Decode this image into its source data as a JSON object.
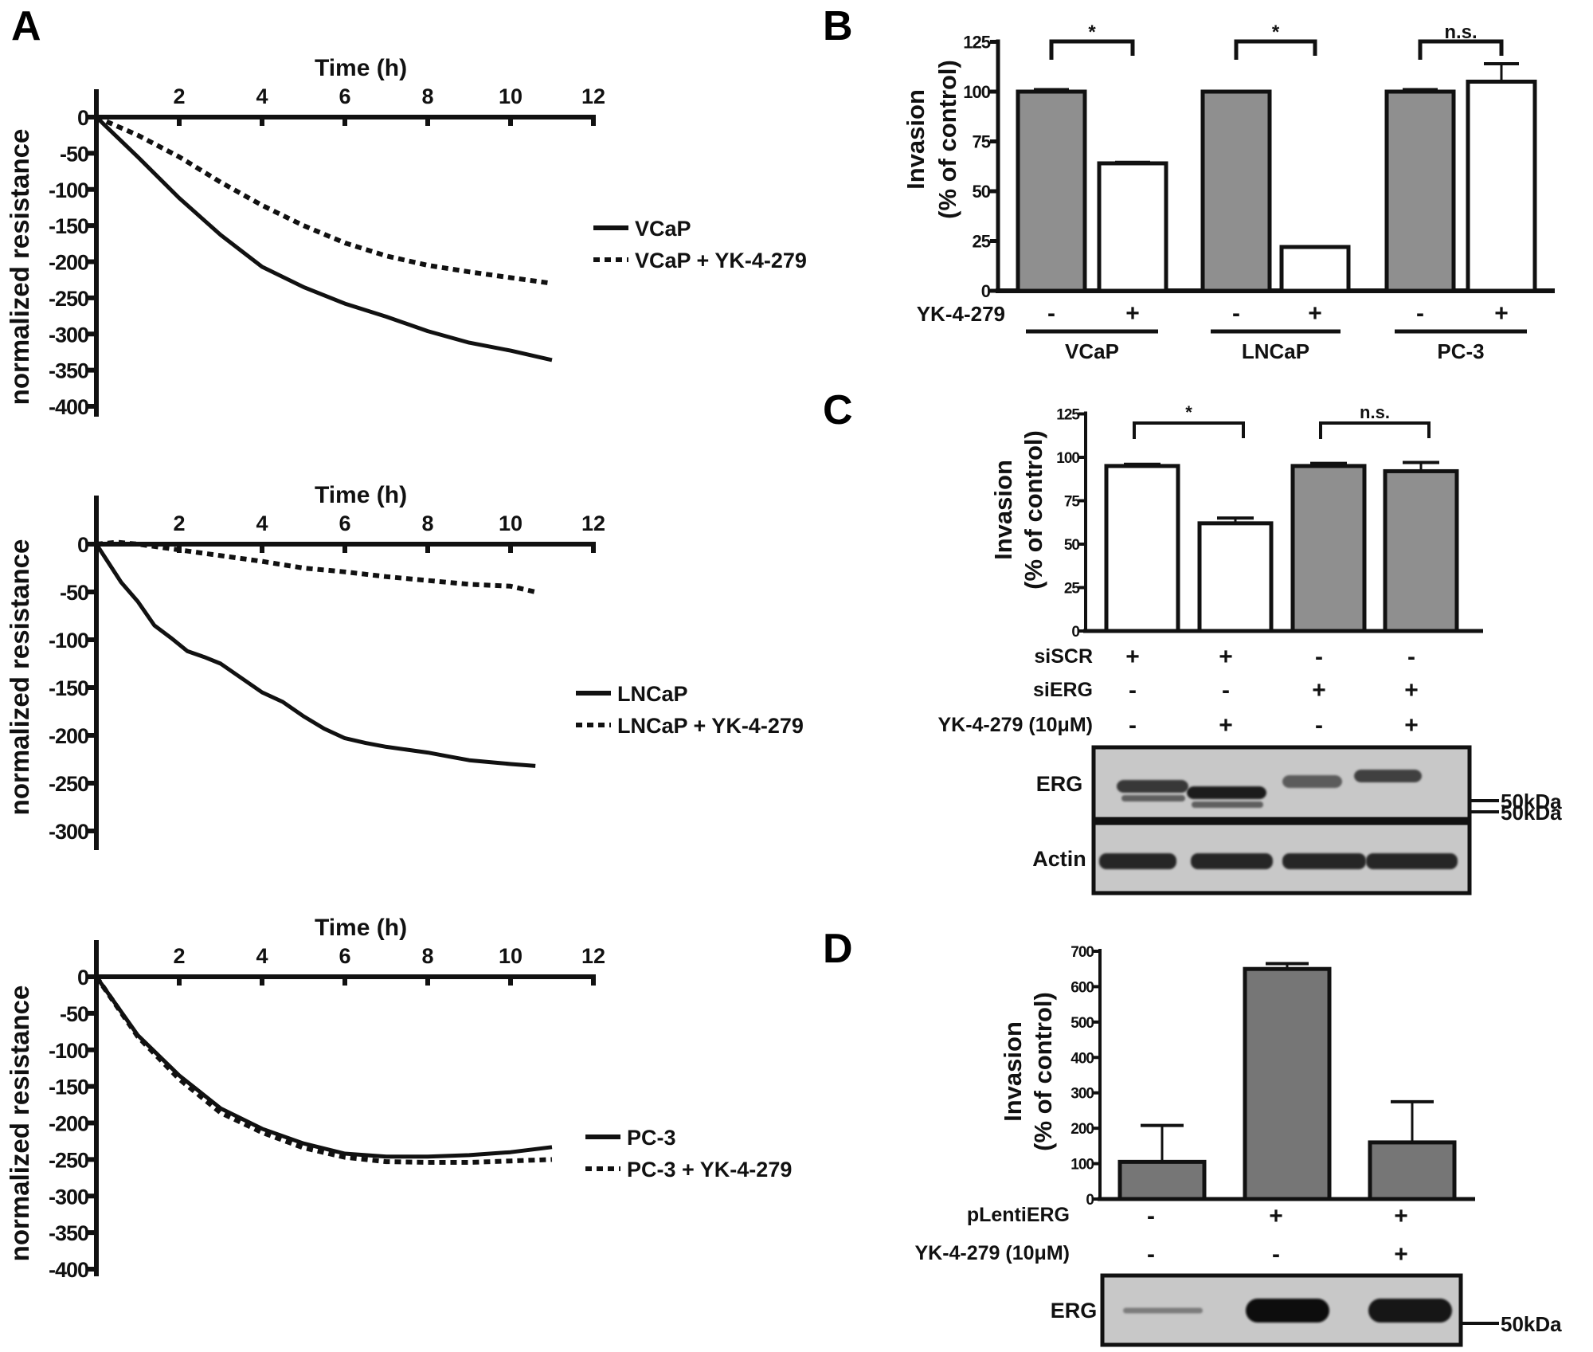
{
  "panel_labels": {
    "a": "A",
    "b": "B",
    "c": "C",
    "d": "D"
  },
  "chart_data": [
    {
      "id": "A1",
      "type": "line",
      "title": "",
      "xlabel": "Time (h)",
      "ylabel": "normalized resistance",
      "xticks": [
        2,
        4,
        6,
        8,
        10,
        12
      ],
      "yticks": [
        0,
        -50,
        -100,
        -150,
        -200,
        -250,
        -300,
        -350,
        -400
      ],
      "xlim": [
        0,
        12
      ],
      "ylim": [
        -400,
        0
      ],
      "legend": "right",
      "series": [
        {
          "name": "VCaP",
          "style": "solid",
          "x": [
            0,
            1,
            2,
            3,
            4,
            5,
            6,
            7,
            8,
            9,
            10,
            11
          ],
          "y": [
            0,
            -55,
            -112,
            -163,
            -207,
            -235,
            -258,
            -276,
            -296,
            -312,
            -323,
            -336
          ]
        },
        {
          "name": "VCaP + YK-4-279",
          "style": "dashed",
          "x": [
            0,
            1,
            2,
            3,
            4,
            5,
            6,
            7,
            8,
            9,
            10,
            11
          ],
          "y": [
            0,
            -25,
            -55,
            -90,
            -122,
            -150,
            -174,
            -192,
            -205,
            -214,
            -222,
            -230
          ]
        }
      ]
    },
    {
      "id": "A2",
      "type": "line",
      "xlabel": "Time (h)",
      "ylabel": "normalized resistance",
      "xticks": [
        2,
        4,
        6,
        8,
        10,
        12
      ],
      "yticks": [
        0,
        -50,
        -100,
        -150,
        -200,
        -250,
        -300
      ],
      "xlim": [
        0,
        12
      ],
      "ylim": [
        -320,
        0
      ],
      "legend": "right",
      "series": [
        {
          "name": "LNCaP",
          "style": "solid",
          "x": [
            0,
            0.3,
            0.6,
            1,
            1.4,
            1.8,
            2.2,
            2.6,
            3,
            3.5,
            4,
            4.5,
            5,
            5.5,
            6,
            6.5,
            7,
            7.5,
            8,
            8.5,
            9,
            9.5,
            10,
            10.6
          ],
          "y": [
            0,
            -20,
            -40,
            -60,
            -85,
            -98,
            -112,
            -118,
            -125,
            -140,
            -155,
            -165,
            -180,
            -193,
            -203,
            -208,
            -212,
            -215,
            -218,
            -222,
            -226,
            -228,
            -230,
            -232
          ]
        },
        {
          "name": "LNCaP + YK-4-279",
          "style": "dashed",
          "x": [
            0,
            0.5,
            1,
            1.5,
            2,
            3,
            4,
            5,
            6,
            7,
            8,
            9,
            10,
            10.6
          ],
          "y": [
            0,
            2,
            0,
            -3,
            -6,
            -12,
            -18,
            -25,
            -29,
            -34,
            -38,
            -42,
            -44,
            -50
          ]
        }
      ]
    },
    {
      "id": "A3",
      "type": "line",
      "xlabel": "Time (h)",
      "ylabel": "normalized resistance",
      "xticks": [
        2,
        4,
        6,
        8,
        10,
        12
      ],
      "yticks": [
        0,
        -50,
        -100,
        -150,
        -200,
        -250,
        -300,
        -350,
        -400
      ],
      "xlim": [
        0,
        12
      ],
      "ylim": [
        -400,
        0
      ],
      "legend": "right",
      "series": [
        {
          "name": "PC-3",
          "style": "solid",
          "x": [
            0,
            1,
            2,
            3,
            4,
            5,
            6,
            7,
            8,
            9,
            10,
            11
          ],
          "y": [
            0,
            -80,
            -135,
            -180,
            -208,
            -228,
            -242,
            -246,
            -246,
            -244,
            -240,
            -233
          ]
        },
        {
          "name": "PC-3 + YK-4-279",
          "style": "dashed",
          "x": [
            0,
            1,
            2,
            3,
            4,
            5,
            6,
            7,
            8,
            9,
            10,
            11
          ],
          "y": [
            0,
            -82,
            -140,
            -186,
            -213,
            -234,
            -247,
            -253,
            -254,
            -254,
            -252,
            -250
          ]
        }
      ]
    },
    {
      "id": "B",
      "type": "bar",
      "ylabel_line1": "Invasion",
      "ylabel_line2": "(% of control)",
      "yticks": [
        0,
        25,
        50,
        75,
        100,
        125
      ],
      "ylim": [
        0,
        125
      ],
      "row_label": "YK-4-279",
      "groups": [
        {
          "name": "VCaP",
          "significance": "*",
          "bars": [
            {
              "treatment": "-",
              "value": 100,
              "error": 1,
              "fill": "gray"
            },
            {
              "treatment": "+",
              "value": 64,
              "error": 0.5,
              "fill": "white"
            }
          ]
        },
        {
          "name": "LNCaP",
          "significance": "*",
          "bars": [
            {
              "treatment": "-",
              "value": 100,
              "error": 0,
              "fill": "gray"
            },
            {
              "treatment": "+",
              "value": 22,
              "error": 0,
              "fill": "white"
            }
          ]
        },
        {
          "name": "PC-3",
          "significance": "n.s.",
          "bars": [
            {
              "treatment": "-",
              "value": 100,
              "error": 1,
              "fill": "gray"
            },
            {
              "treatment": "+",
              "value": 105,
              "error": 9,
              "fill": "white"
            }
          ]
        }
      ]
    },
    {
      "id": "C",
      "type": "bar",
      "ylabel_line1": "Invasion",
      "ylabel_line2": "(% of control)",
      "yticks": [
        0,
        25,
        50,
        75,
        100,
        125
      ],
      "ylim": [
        0,
        125
      ],
      "bars": [
        {
          "value": 95,
          "error": 1,
          "fill": "white"
        },
        {
          "value": 62,
          "error": 3,
          "fill": "white"
        },
        {
          "value": 95,
          "error": 1.5,
          "fill": "gray"
        },
        {
          "value": 92,
          "error": 5,
          "fill": "gray"
        }
      ],
      "significance": [
        {
          "pair": [
            0,
            1
          ],
          "label": "*"
        },
        {
          "pair": [
            2,
            3
          ],
          "label": "n.s."
        }
      ],
      "condition_rows": [
        {
          "label": "siSCR",
          "values": [
            "+",
            "+",
            "-",
            "-"
          ]
        },
        {
          "label": "siERG",
          "values": [
            "-",
            "-",
            "+",
            "+"
          ]
        },
        {
          "label": "YK-4-279 (10μM)",
          "values": [
            "-",
            "+",
            "-",
            "+"
          ]
        }
      ],
      "blot": {
        "rows": [
          {
            "label": "ERG",
            "band_intensity": [
              0.8,
              0.95,
              0.6,
              0.75
            ],
            "marker": "50kDa"
          },
          {
            "label": "Actin",
            "band_intensity": [
              0.9,
              0.9,
              0.9,
              0.9
            ],
            "marker": "50kDa"
          }
        ]
      }
    },
    {
      "id": "D",
      "type": "bar",
      "ylabel_line1": "Invasion",
      "ylabel_line2": "(% of control)",
      "yticks": [
        0,
        100,
        200,
        300,
        400,
        500,
        600,
        700
      ],
      "ylim": [
        0,
        700
      ],
      "bars": [
        {
          "value": 105,
          "error": 103,
          "fill": "darkgray"
        },
        {
          "value": 650,
          "error": 15,
          "fill": "darkgray"
        },
        {
          "value": 160,
          "error": 115,
          "fill": "darkgray"
        }
      ],
      "condition_rows": [
        {
          "label": "pLentiERG",
          "values": [
            "-",
            "+",
            "+"
          ]
        },
        {
          "label": "YK-4-279 (10μM)",
          "values": [
            "-",
            "-",
            "+"
          ]
        }
      ],
      "blot": {
        "rows": [
          {
            "label": "ERG",
            "band_intensity": [
              0.4,
              1.0,
              0.95
            ],
            "marker": "50kDa"
          }
        ]
      }
    }
  ],
  "colors": {
    "gray_bar": "#8f8f8f",
    "dark_bar": "#767676",
    "blot_bg": "#c8c8c8",
    "ink": "#111111"
  }
}
